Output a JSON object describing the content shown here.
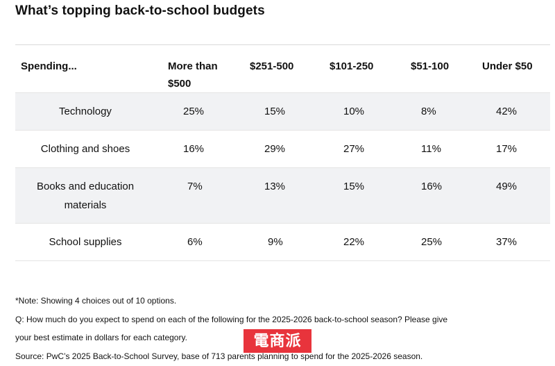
{
  "title": "What’s topping back-to-school budgets",
  "table": {
    "headers": [
      "Spending...",
      "More than $500",
      "$251-500",
      "$101-250",
      "$51-100",
      "Under $50"
    ],
    "rows": [
      {
        "category": "Technology",
        "values": [
          "25%",
          "15%",
          "10%",
          "8%",
          "42%"
        ]
      },
      {
        "category": "Clothing and shoes",
        "values": [
          "16%",
          "29%",
          "27%",
          "11%",
          "17%"
        ]
      },
      {
        "category": "Books and education materials",
        "values": [
          "7%",
          "13%",
          "15%",
          "16%",
          "49%"
        ]
      },
      {
        "category": "School supplies",
        "values": [
          "6%",
          "9%",
          "22%",
          "25%",
          "37%"
        ]
      }
    ]
  },
  "notes": {
    "note": "*Note: Showing 4 choices out of 10 options.",
    "question_line1": "Q: How much do you expect to spend on each of the following for the 2025-2026 back-to-school season? Please give",
    "question_line2": "your best estimate in dollars for each category.",
    "source": "Source: PwC’s 2025 Back-to-School Survey, base of 713 parents planning to spend for the 2025-2026 season."
  },
  "watermark": {
    "text": "電商派",
    "color": "#e8343c"
  }
}
